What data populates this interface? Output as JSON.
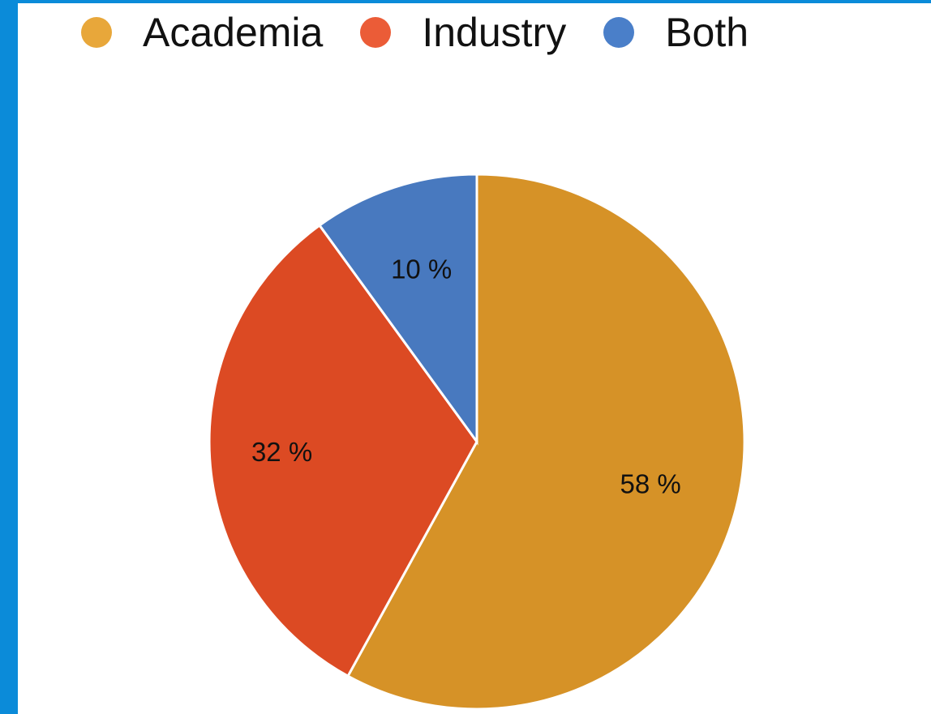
{
  "colors": {
    "frame": "#0b8bd9",
    "slice_stroke": "#ffffff"
  },
  "chart_data": {
    "type": "pie",
    "categories": [
      "Academia",
      "Industry",
      "Both"
    ],
    "values": [
      58,
      32,
      10
    ],
    "labels": [
      "58 %",
      "32 %",
      "10 %"
    ],
    "colors": [
      "#d69227",
      "#dc4a23",
      "#4879bf"
    ],
    "legend_colors": [
      "#e8a73a",
      "#eb5c37",
      "#4a7fc9"
    ],
    "legend_position": "top",
    "start_angle_deg": 0,
    "direction": "clockwise"
  }
}
